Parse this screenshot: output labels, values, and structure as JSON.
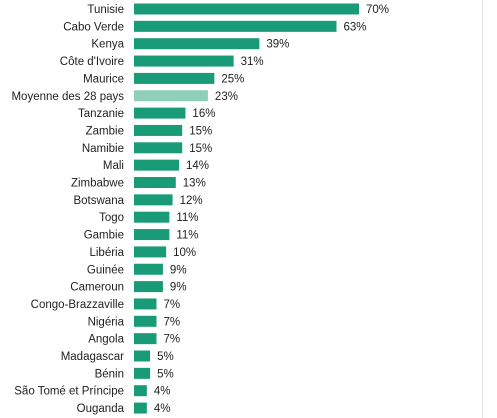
{
  "colors": {
    "bar": "#1a9b78",
    "bar_highlight": "#8fcfb9"
  },
  "chart_data": {
    "type": "bar",
    "orientation": "horizontal",
    "title": "",
    "xlabel": "",
    "ylabel": "",
    "xlim": [
      0,
      70
    ],
    "grid": false,
    "legend": "none",
    "highlight_category": "Moyenne des 28 pays",
    "categories": [
      "Tunisie",
      "Cabo Verde",
      "Kenya",
      "Côte d'Ivoire",
      "Maurice",
      "Moyenne des 28 pays",
      "Tanzanie",
      "Zambie",
      "Namibie",
      "Mali",
      "Zimbabwe",
      "Botswana",
      "Togo",
      "Gambie",
      "Libéria",
      "Guinée",
      "Cameroun",
      "Congo-Brazzaville",
      "Nigéria",
      "Angola",
      "Madagascar",
      "Bénin",
      "São Tomé et Príncipe",
      "Ouganda"
    ],
    "values": [
      70,
      63,
      39,
      31,
      25,
      23,
      16,
      15,
      15,
      14,
      13,
      12,
      11,
      11,
      10,
      9,
      9,
      7,
      7,
      7,
      5,
      5,
      4,
      4
    ],
    "value_labels": [
      "70%",
      "63%",
      "39%",
      "31%",
      "25%",
      "23%",
      "16%",
      "15%",
      "15%",
      "14%",
      "13%",
      "12%",
      "11%",
      "11%",
      "10%",
      "9%",
      "9%",
      "7%",
      "7%",
      "7%",
      "5%",
      "5%",
      "4%",
      "4%"
    ]
  }
}
